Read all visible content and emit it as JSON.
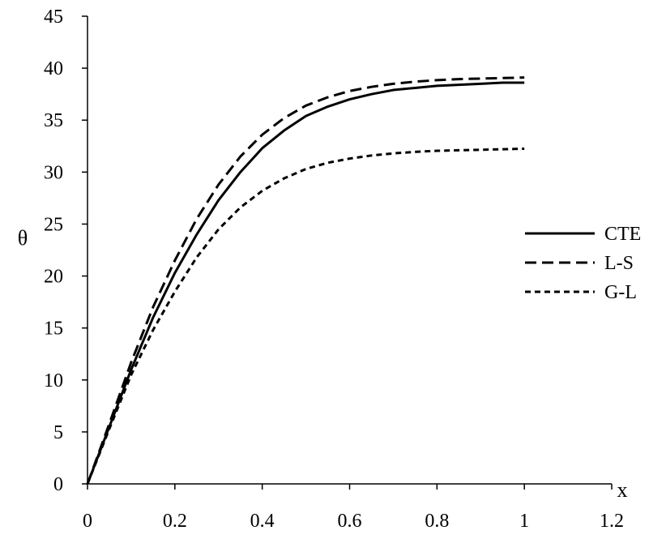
{
  "chart_data": {
    "type": "line",
    "title": "",
    "xlabel": "x",
    "ylabel": "θ",
    "xlim": [
      0,
      1.2
    ],
    "ylim": [
      0,
      45
    ],
    "x_ticks": [
      "0",
      "0.2",
      "0.4",
      "0.6",
      "0.8",
      "1",
      "1.2"
    ],
    "y_ticks": [
      "0",
      "5",
      "10",
      "15",
      "20",
      "25",
      "30",
      "35",
      "40",
      "45"
    ],
    "x_tick_values": [
      0,
      0.2,
      0.4,
      0.6,
      0.8,
      1.0,
      1.2
    ],
    "y_tick_values": [
      0,
      5,
      10,
      15,
      20,
      25,
      30,
      35,
      40,
      45
    ],
    "grid": false,
    "legend_position": "right",
    "x": [
      0,
      0.05,
      0.1,
      0.15,
      0.2,
      0.25,
      0.3,
      0.35,
      0.4,
      0.45,
      0.5,
      0.55,
      0.6,
      0.65,
      0.7,
      0.75,
      0.8,
      0.85,
      0.9,
      0.95,
      1.0
    ],
    "series": [
      {
        "name": "CTE",
        "dash": "solid",
        "color": "#000000",
        "values": [
          0,
          5.5,
          11.0,
          16.0,
          20.3,
          24.0,
          27.3,
          30.0,
          32.3,
          34.0,
          35.4,
          36.3,
          37.0,
          37.5,
          37.9,
          38.1,
          38.3,
          38.4,
          38.5,
          38.6,
          38.6
        ]
      },
      {
        "name": "L-S",
        "dash": "dashed",
        "color": "#000000",
        "values": [
          0,
          5.8,
          11.7,
          17.0,
          21.5,
          25.5,
          28.8,
          31.5,
          33.6,
          35.2,
          36.4,
          37.2,
          37.8,
          38.2,
          38.5,
          38.7,
          38.85,
          38.95,
          39.0,
          39.05,
          39.1
        ]
      },
      {
        "name": "G-L",
        "dash": "dotted",
        "color": "#000000",
        "values": [
          0,
          5.3,
          10.5,
          14.8,
          18.5,
          21.8,
          24.5,
          26.6,
          28.2,
          29.4,
          30.3,
          30.9,
          31.3,
          31.6,
          31.8,
          31.95,
          32.05,
          32.1,
          32.15,
          32.2,
          32.25
        ]
      }
    ]
  }
}
